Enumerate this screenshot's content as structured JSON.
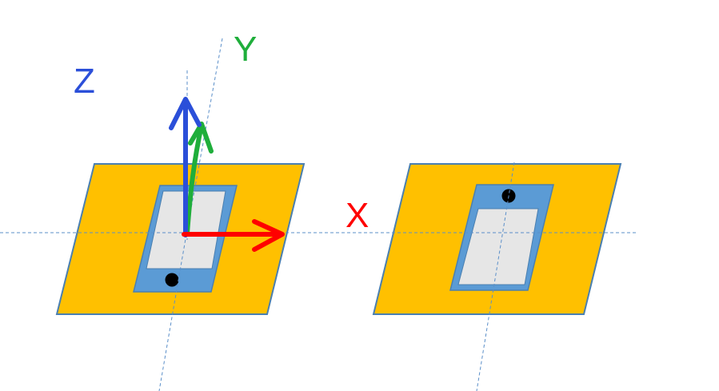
{
  "diagram": {
    "axes": {
      "x": {
        "label": "X",
        "color": "#ff0000"
      },
      "y": {
        "label": "Y",
        "color": "#1fae3b"
      },
      "z": {
        "label": "Z",
        "color": "#2b4fd9"
      }
    },
    "colors": {
      "board": "#ffc000",
      "board_outline": "#4a7fb0",
      "device_frame": "#5b9bd5",
      "device_screen": "#e6e6e6",
      "marker_dot": "#000000",
      "guide_line": "#5b8fc9",
      "background": "#ffffff"
    },
    "left_assembly": {
      "marker_position": "bottom"
    },
    "right_assembly": {
      "marker_position": "top"
    }
  }
}
